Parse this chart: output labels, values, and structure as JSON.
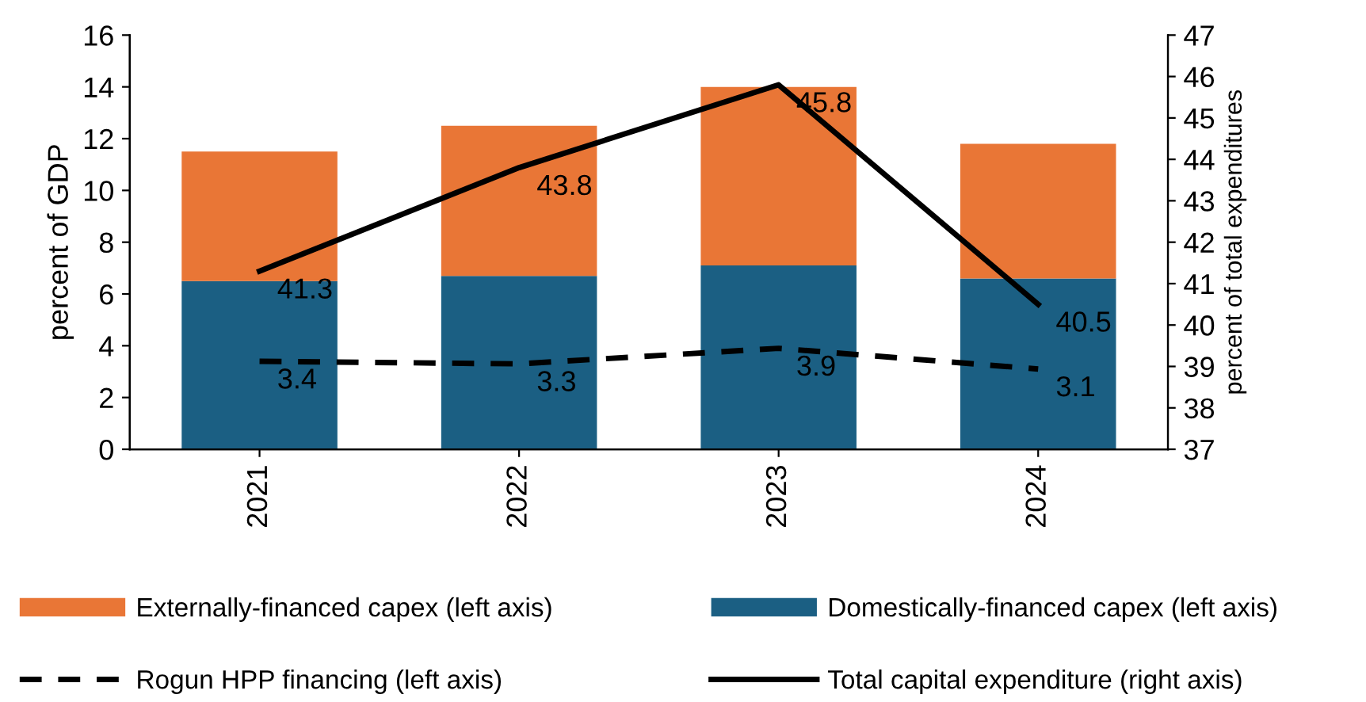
{
  "chart_data": {
    "type": "bar",
    "stacked": true,
    "categories": [
      "2021",
      "2022",
      "2023",
      "2024"
    ],
    "ylabel": "percent of GDP",
    "y2label": "percent of total expenditures",
    "ylim": [
      0,
      16
    ],
    "yticks": [
      0,
      2,
      4,
      6,
      8,
      10,
      12,
      14,
      16
    ],
    "y2lim": [
      37,
      47
    ],
    "y2ticks": [
      37,
      38,
      39,
      40,
      41,
      42,
      43,
      44,
      45,
      46,
      47
    ],
    "grid": false,
    "legend": "bottom",
    "series": [
      {
        "name": "Domestically-financed capex (left axis)",
        "color": "#1b5f83",
        "values": [
          6.5,
          6.7,
          7.1,
          6.6
        ]
      },
      {
        "name": "Externally-financed capex (left axis)",
        "color": "#e97636",
        "values": [
          5.0,
          5.8,
          6.9,
          5.2
        ]
      },
      {
        "name": "Rogun HPP financing (left axis)",
        "type": "line",
        "line_style": "dashed",
        "color": "#000000",
        "values": [
          3.4,
          3.3,
          3.9,
          3.1
        ],
        "value_labels": [
          "3.4",
          "3.3",
          "3.9",
          "3.1"
        ]
      },
      {
        "name": "Total capital expenditure (right axis)",
        "type": "line",
        "line_style": "solid",
        "axis": "y2",
        "color": "#000000",
        "values": [
          41.3,
          43.8,
          45.8,
          40.5
        ],
        "value_labels": [
          "41.3",
          "43.8",
          "45.8",
          "40.5"
        ]
      }
    ]
  }
}
